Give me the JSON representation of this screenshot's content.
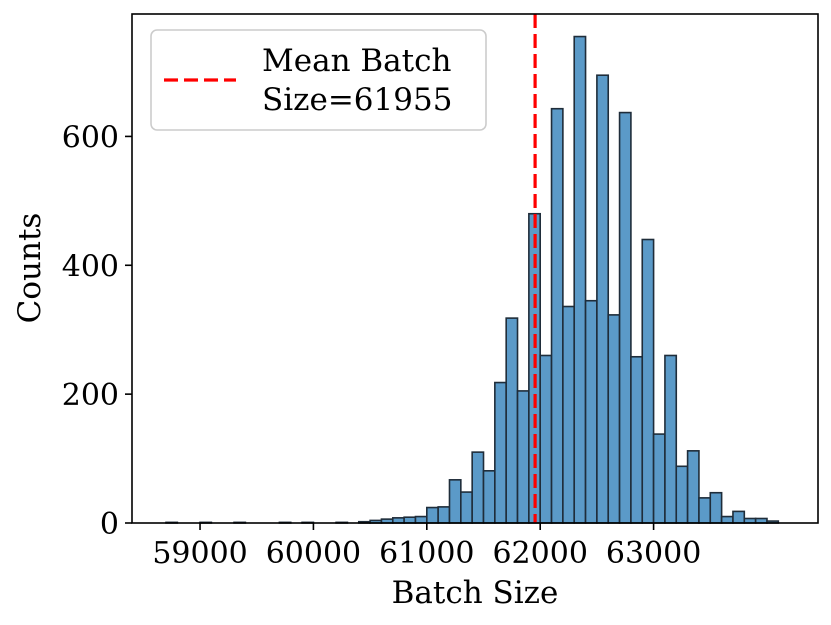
{
  "chart_data": {
    "type": "histogram",
    "xlabel": "Batch Size",
    "ylabel": "Counts",
    "xlim": [
      58400,
      64450
    ],
    "ylim": [
      0,
      790
    ],
    "x_ticks": [
      {
        "value": 59000,
        "label": "59000"
      },
      {
        "value": 60000,
        "label": "60000"
      },
      {
        "value": 61000,
        "label": "61000"
      },
      {
        "value": 62000,
        "label": "62000"
      },
      {
        "value": 63000,
        "label": "63000"
      }
    ],
    "y_ticks": [
      {
        "value": 0,
        "label": "0"
      },
      {
        "value": 200,
        "label": "200"
      },
      {
        "value": 400,
        "label": "400"
      },
      {
        "value": 600,
        "label": "600"
      }
    ],
    "bin_start": 58700,
    "bin_width": 100,
    "counts": [
      1,
      0,
      0,
      1,
      0,
      0,
      1,
      0,
      0,
      0,
      1,
      0,
      1,
      0,
      0,
      1,
      0,
      2,
      4,
      6,
      8,
      9,
      10,
      24,
      25,
      67,
      48,
      110,
      81,
      218,
      318,
      205,
      480,
      260,
      643,
      336,
      755,
      345,
      695,
      323,
      637,
      258,
      440,
      138,
      260,
      88,
      112,
      39,
      47,
      10,
      18,
      7,
      7,
      3
    ],
    "mean_line": {
      "value": 61955,
      "color": "#ff0000"
    },
    "legend": {
      "label": "Mean Batch Size=61955",
      "line1": "Mean Batch",
      "line2": "Size=61955",
      "position": "upper-left"
    },
    "colors": {
      "bar_fill": "#5b9ac8",
      "bar_edge": "#1f2d3a",
      "mean_line": "#ff0000"
    }
  }
}
